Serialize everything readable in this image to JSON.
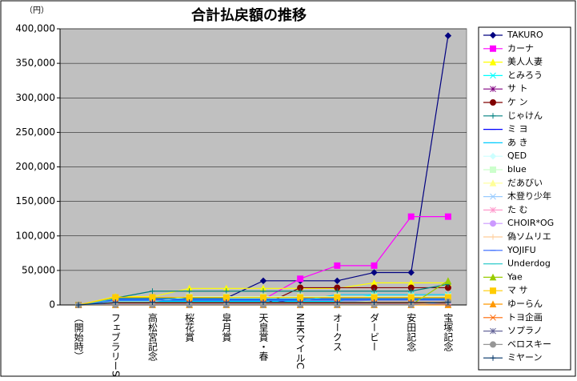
{
  "chart_data": {
    "type": "line",
    "title": "合計払戻額の推移",
    "unit_label": "（円）",
    "categories": [
      "（開始時）",
      "フェブラリーS",
      "高松宮記念",
      "桜花賞",
      "皐月賞",
      "天皇賞・春",
      "NHKマイルC",
      "オークス",
      "ダービー",
      "安田記念",
      "宝塚記念"
    ],
    "ylim": [
      0,
      400000
    ],
    "yticks": [
      0,
      {
        "value": 50000,
        "label": "50,000"
      },
      {
        "value": 100000,
        "label": "100,000"
      },
      {
        "value": 150000,
        "label": "150,000"
      },
      {
        "value": 200000,
        "label": "200,000"
      },
      {
        "value": 250000,
        "label": "250,000"
      },
      {
        "value": 300000,
        "label": "300,000"
      },
      {
        "value": 350000,
        "label": "350,000"
      },
      {
        "value": 400000,
        "label": "400,000"
      }
    ],
    "grid": true,
    "legend": "right",
    "plot_background": "#c0c0c0",
    "series": [
      {
        "name": "TAKURO",
        "color": "#000080",
        "marker": "diamond",
        "values": [
          0,
          10000,
          10000,
          10000,
          10000,
          35000,
          35000,
          35000,
          47000,
          47000,
          390000
        ]
      },
      {
        "name": "カーナ",
        "color": "#ff00ff",
        "marker": "square",
        "values": [
          0,
          8000,
          8000,
          8000,
          8000,
          8000,
          38000,
          57000,
          57000,
          128000,
          128000
        ]
      },
      {
        "name": "美人人妻",
        "color": "#ffff00",
        "marker": "triangle",
        "values": [
          0,
          12000,
          12000,
          24000,
          24000,
          24000,
          24000,
          24000,
          32000,
          32000,
          32000
        ]
      },
      {
        "name": "とみろう",
        "color": "#00ffff",
        "marker": "x",
        "values": [
          0,
          5000,
          5000,
          5000,
          5000,
          5000,
          5000,
          5000,
          15000,
          15000,
          15000
        ]
      },
      {
        "name": "サ ト",
        "color": "#800080",
        "marker": "star",
        "values": [
          0,
          0,
          0,
          0,
          0,
          0,
          10000,
          10000,
          10000,
          10000,
          10000
        ]
      },
      {
        "name": "ケ ン",
        "color": "#800000",
        "marker": "circle",
        "values": [
          0,
          0,
          0,
          0,
          0,
          0,
          25000,
          25000,
          25000,
          25000,
          25000
        ]
      },
      {
        "name": "じゃけん",
        "color": "#008080",
        "marker": "plus",
        "values": [
          0,
          10000,
          20000,
          20000,
          20000,
          20000,
          20000,
          20000,
          20000,
          20000,
          30000
        ]
      },
      {
        "name": "ミ ヨ",
        "color": "#0000ff",
        "marker": "dash",
        "values": [
          0,
          8000,
          8000,
          8000,
          8000,
          8000,
          8000,
          8000,
          8000,
          8000,
          8000
        ]
      },
      {
        "name": "あ き",
        "color": "#00ccff",
        "marker": "dash",
        "values": [
          0,
          6000,
          6000,
          6000,
          6000,
          6000,
          6000,
          15000,
          15000,
          15000,
          15000
        ]
      },
      {
        "name": "QED",
        "color": "#ccffff",
        "marker": "diamond",
        "values": [
          0,
          3000,
          3000,
          3000,
          3000,
          3000,
          3000,
          3000,
          3000,
          3000,
          3000
        ]
      },
      {
        "name": "blue",
        "color": "#ccffcc",
        "marker": "square",
        "values": [
          0,
          5000,
          5000,
          12000,
          12000,
          12000,
          12000,
          12000,
          12000,
          12000,
          12000
        ]
      },
      {
        "name": "だあびい",
        "color": "#ffff99",
        "marker": "triangle",
        "values": [
          0,
          2000,
          2000,
          2000,
          2000,
          2000,
          2000,
          2000,
          6000,
          6000,
          6000
        ]
      },
      {
        "name": "木登り少年",
        "color": "#99ccff",
        "marker": "x",
        "values": [
          0,
          4000,
          4000,
          4000,
          4000,
          4000,
          4000,
          4000,
          4000,
          4000,
          4000
        ]
      },
      {
        "name": "た む",
        "color": "#ff99cc",
        "marker": "star",
        "values": [
          0,
          1000,
          1000,
          1000,
          1000,
          1000,
          1000,
          1000,
          1000,
          1000,
          1000
        ]
      },
      {
        "name": "CHOIR*OG",
        "color": "#cc99ff",
        "marker": "circle",
        "values": [
          0,
          2000,
          2000,
          2000,
          2000,
          2000,
          2000,
          2000,
          2000,
          2000,
          2000
        ]
      },
      {
        "name": "偽ソムリエ",
        "color": "#ffcc99",
        "marker": "plus",
        "values": [
          0,
          0,
          0,
          0,
          0,
          0,
          0,
          0,
          5000,
          5000,
          5000
        ]
      },
      {
        "name": "YOJIFU",
        "color": "#3366ff",
        "marker": "dash",
        "values": [
          0,
          7000,
          7000,
          7000,
          7000,
          7000,
          7000,
          7000,
          7000,
          7000,
          7000
        ]
      },
      {
        "name": "Underdog",
        "color": "#33cccc",
        "marker": "dash",
        "values": [
          0,
          9000,
          9000,
          9000,
          9000,
          9000,
          9000,
          9000,
          9000,
          9000,
          9000
        ]
      },
      {
        "name": "Yae",
        "color": "#99cc00",
        "marker": "triangle",
        "values": [
          0,
          0,
          0,
          0,
          0,
          0,
          0,
          0,
          0,
          0,
          35000
        ]
      },
      {
        "name": "マ サ",
        "color": "#ffcc00",
        "marker": "square",
        "values": [
          0,
          11000,
          11000,
          11000,
          11000,
          11000,
          11000,
          11000,
          11000,
          11000,
          11000
        ]
      },
      {
        "name": "ゆーらん",
        "color": "#ff9900",
        "marker": "triangle",
        "values": [
          0,
          0,
          0,
          0,
          0,
          0,
          0,
          0,
          0,
          0,
          0
        ]
      },
      {
        "name": "トヨ企画",
        "color": "#ff6600",
        "marker": "x",
        "values": [
          0,
          3000,
          3000,
          3000,
          3000,
          3000,
          3000,
          3000,
          3000,
          3000,
          3000
        ]
      },
      {
        "name": "ソプラノ",
        "color": "#666699",
        "marker": "star",
        "values": [
          0,
          1500,
          1500,
          1500,
          1500,
          1500,
          1500,
          1500,
          1500,
          1500,
          1500
        ]
      },
      {
        "name": "ベロスキー",
        "color": "#969696",
        "marker": "circle",
        "values": [
          0,
          0,
          0,
          0,
          0,
          0,
          0,
          0,
          0,
          0,
          5000
        ]
      },
      {
        "name": "ミヤーン",
        "color": "#003366",
        "marker": "plus",
        "values": [
          0,
          4000,
          4000,
          4000,
          4000,
          4000,
          4000,
          4000,
          4000,
          4000,
          4000
        ]
      }
    ]
  }
}
